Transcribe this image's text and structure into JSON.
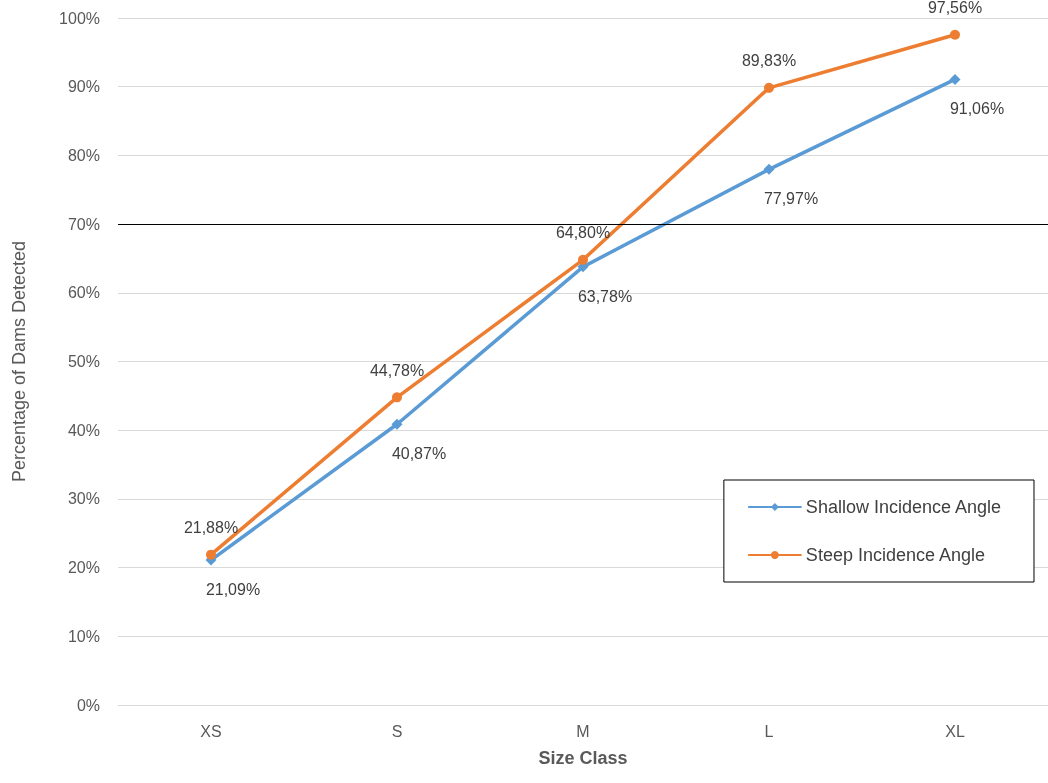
{
  "chart_data": {
    "type": "line",
    "xlabel": "Size Class",
    "ylabel": "Percentage of Dams Detected",
    "categories": [
      "XS",
      "S",
      "M",
      "L",
      "XL"
    ],
    "series": [
      {
        "name": "Shallow Incidence Angle",
        "color": "#5b9bd5",
        "marker": "diamond",
        "values": [
          21.09,
          40.87,
          63.78,
          77.97,
          91.06
        ],
        "value_labels": [
          "21,09%",
          "40,87%",
          "63,78%",
          "77,97%",
          "91,06%"
        ]
      },
      {
        "name": "Steep Incidence Angle",
        "color": "#ed7d31",
        "marker": "circle",
        "values": [
          21.88,
          44.78,
          64.8,
          89.83,
          97.56
        ],
        "value_labels": [
          "21,88%",
          "44,78%",
          "64,80%",
          "89,83%",
          "97,56%"
        ]
      }
    ],
    "ylim": [
      0,
      100
    ],
    "yticks": [
      {
        "value": 0,
        "label": "0%"
      },
      {
        "value": 10,
        "label": "10%"
      },
      {
        "value": 20,
        "label": "20%"
      },
      {
        "value": 30,
        "label": "30%"
      },
      {
        "value": 40,
        "label": "40%"
      },
      {
        "value": 50,
        "label": "50%"
      },
      {
        "value": 60,
        "label": "60%"
      },
      {
        "value": 70,
        "label": "70%"
      },
      {
        "value": 80,
        "label": "80%"
      },
      {
        "value": 90,
        "label": "90%"
      },
      {
        "value": 100,
        "label": "100%"
      }
    ],
    "grid": "y",
    "legend": "bottom right",
    "line_style": "solid",
    "ref_lines": [
      {
        "axis": "y",
        "value": 70,
        "color": "#000000"
      }
    ]
  }
}
